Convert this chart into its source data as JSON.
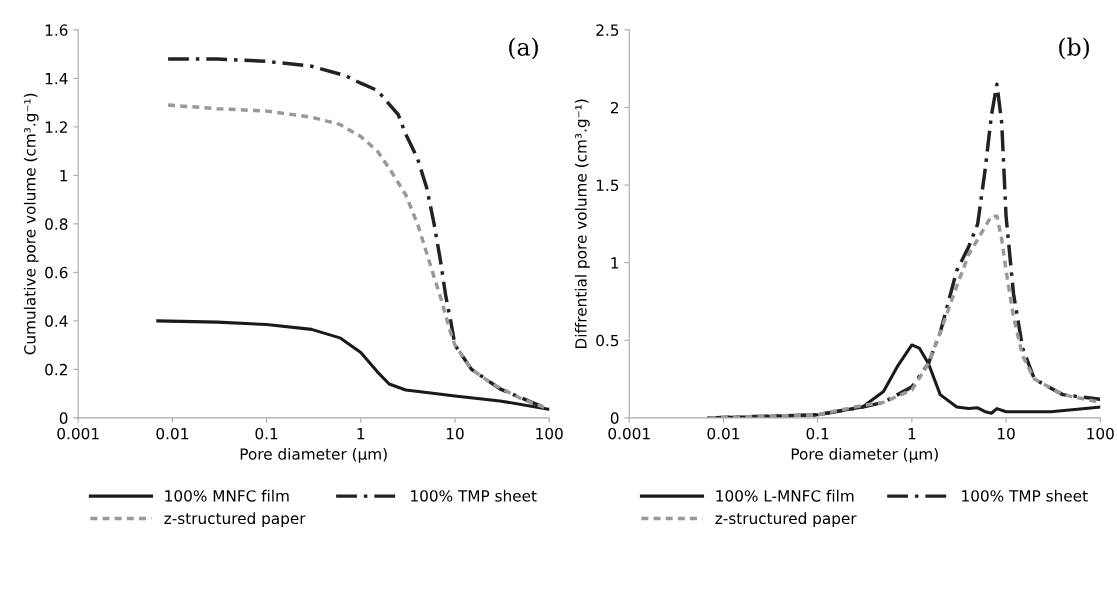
{
  "chart_data": [
    {
      "type": "line",
      "xlabel": "Pore diameter (μm)",
      "ylabel": "Cumulative pore volume (cm³.g⁻¹)",
      "annotations": [
        "(a)"
      ],
      "log": "x",
      "grid": false,
      "legend": "bottom",
      "marker": "none",
      "xlim": [
        0.001,
        100
      ],
      "xticks": [
        0.001,
        0.01,
        0.1,
        1,
        10,
        100
      ],
      "ylim": [
        0,
        1.6
      ],
      "yticks": [
        0,
        0.2,
        0.4,
        0.6,
        0.8,
        1,
        1.2,
        1.4,
        1.6
      ],
      "series": [
        {
          "name": "100% MNFC film",
          "color": "#1a1a1a",
          "line_style": "solid",
          "x": [
            0.007,
            0.03,
            0.1,
            0.3,
            0.6,
            1,
            1.5,
            2,
            3,
            5,
            10,
            30,
            100
          ],
          "values": [
            0.4,
            0.395,
            0.385,
            0.365,
            0.33,
            0.27,
            0.19,
            0.14,
            0.115,
            0.105,
            0.09,
            0.07,
            0.035
          ]
        },
        {
          "name": "100% TMP sheet",
          "color": "#222222",
          "line_style": "dashed",
          "x": [
            0.009,
            0.03,
            0.1,
            0.3,
            0.7,
            1,
            1.5,
            2.5,
            3,
            4,
            5,
            6,
            7,
            8,
            9,
            10,
            15,
            30,
            60,
            100
          ],
          "values": [
            1.48,
            1.48,
            1.47,
            1.45,
            1.41,
            1.38,
            1.35,
            1.25,
            1.17,
            1.07,
            0.95,
            0.8,
            0.65,
            0.5,
            0.4,
            0.3,
            0.2,
            0.12,
            0.07,
            0.035
          ]
        },
        {
          "name": "z-structured paper",
          "color": "#999999",
          "line_style": "dotted",
          "x": [
            0.009,
            0.03,
            0.1,
            0.3,
            0.6,
            1,
            1.5,
            2,
            3,
            4,
            5,
            6,
            7,
            8,
            9,
            10,
            15,
            25,
            50,
            100
          ],
          "values": [
            1.29,
            1.275,
            1.265,
            1.24,
            1.21,
            1.16,
            1.1,
            1.03,
            0.92,
            0.8,
            0.68,
            0.58,
            0.5,
            0.42,
            0.35,
            0.3,
            0.2,
            0.14,
            0.08,
            0.035
          ]
        }
      ]
    },
    {
      "type": "line",
      "xlabel": "Pore diameter (μm)",
      "ylabel": "Diffrential pore volume (cm³.g⁻¹)",
      "annotations": [
        "(b)"
      ],
      "log": "x",
      "grid": false,
      "legend": "bottom",
      "marker": "none",
      "xlim": [
        0.001,
        100
      ],
      "xticks": [
        0.001,
        0.01,
        0.1,
        1,
        10,
        100
      ],
      "ylim": [
        0,
        2.5
      ],
      "yticks": [
        0,
        0.5,
        1,
        1.5,
        2,
        2.5
      ],
      "series": [
        {
          "name": "100% L-MNFC film",
          "color": "#1a1a1a",
          "line_style": "solid",
          "x": [
            0.007,
            0.03,
            0.1,
            0.3,
            0.5,
            0.7,
            1,
            1.2,
            1.5,
            2,
            3,
            4,
            5,
            6,
            7,
            8,
            10,
            30,
            100
          ],
          "values": [
            0,
            0.01,
            0.02,
            0.07,
            0.17,
            0.33,
            0.47,
            0.45,
            0.35,
            0.15,
            0.07,
            0.06,
            0.065,
            0.04,
            0.03,
            0.06,
            0.04,
            0.04,
            0.07
          ]
        },
        {
          "name": "100% TMP sheet",
          "color": "#222222",
          "line_style": "dashed",
          "x": [
            0.007,
            0.1,
            0.3,
            0.5,
            1,
            1.5,
            2,
            3,
            4,
            5,
            6,
            7,
            8,
            9,
            10,
            12,
            15,
            20,
            40,
            100
          ],
          "values": [
            0,
            0.02,
            0.07,
            0.1,
            0.2,
            0.35,
            0.55,
            0.95,
            1.1,
            1.25,
            1.6,
            1.95,
            2.15,
            1.9,
            1.3,
            0.8,
            0.45,
            0.25,
            0.15,
            0.12
          ]
        },
        {
          "name": "z-structured paper",
          "color": "#999999",
          "line_style": "dotted",
          "x": [
            0.007,
            0.1,
            0.3,
            0.5,
            1,
            1.5,
            2,
            3,
            4,
            5,
            7,
            8,
            9,
            10,
            12,
            15,
            20,
            40,
            100
          ],
          "values": [
            0,
            0.02,
            0.08,
            0.1,
            0.18,
            0.35,
            0.55,
            0.85,
            1.05,
            1.15,
            1.3,
            1.3,
            1.15,
            0.95,
            0.65,
            0.4,
            0.25,
            0.15,
            0.1
          ]
        }
      ]
    }
  ]
}
